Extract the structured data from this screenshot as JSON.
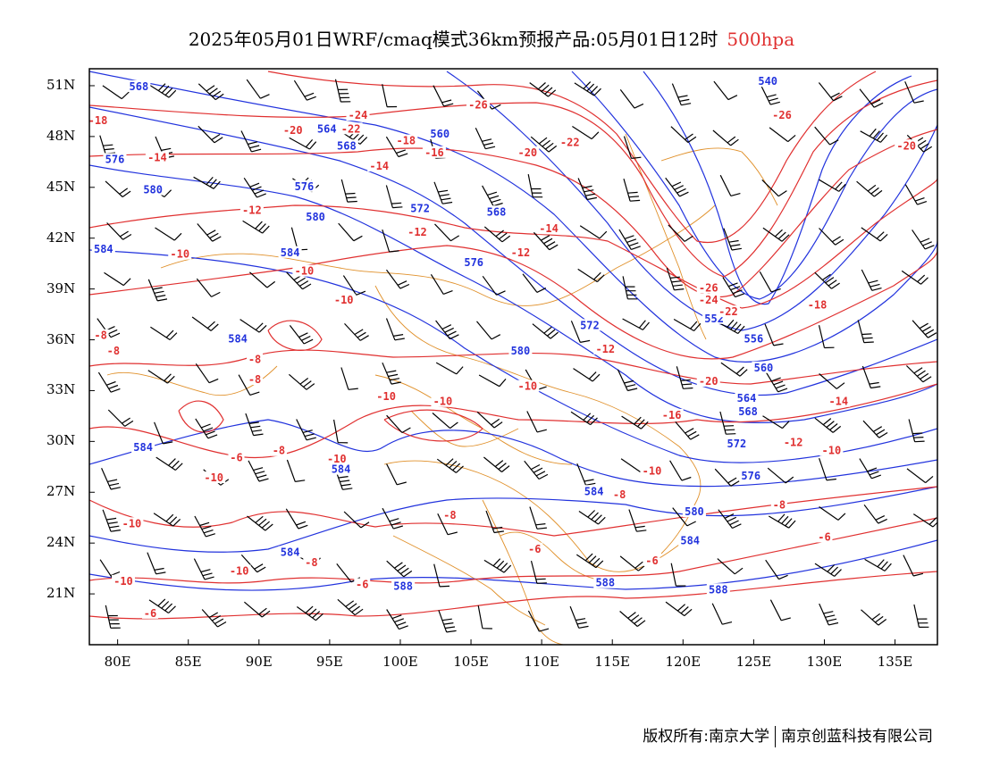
{
  "title": {
    "text": "2025年05月01日WRF/cmaq模式36km预报产品:05月01日12时",
    "level": "500hpa"
  },
  "colors": {
    "height": "#2233dd",
    "temperature": "#e03030",
    "border": "#e0902a",
    "wind": "#000000"
  },
  "axes": {
    "lat_ticks": [
      "51N",
      "48N",
      "45N",
      "42N",
      "39N",
      "36N",
      "33N",
      "30N",
      "27N",
      "24N",
      "21N"
    ],
    "lon_ticks": [
      "80E",
      "85E",
      "90E",
      "95E",
      "100E",
      "105E",
      "110E",
      "115E",
      "120E",
      "125E",
      "130E",
      "135E"
    ],
    "lon_range": [
      78,
      138
    ],
    "lat_range": [
      18,
      52
    ]
  },
  "height_labels": [
    {
      "t": "588",
      "lon": 100.2,
      "lat": 21.4
    },
    {
      "t": "588",
      "lon": 114.5,
      "lat": 21.6
    },
    {
      "t": "588",
      "lon": 122.5,
      "lat": 21.2
    },
    {
      "t": "584",
      "lon": 120.5,
      "lat": 24.1
    },
    {
      "t": "584",
      "lon": 92.2,
      "lat": 23.4
    },
    {
      "t": "584",
      "lon": 113.7,
      "lat": 27.0
    },
    {
      "t": "584",
      "lon": 95.8,
      "lat": 28.3
    },
    {
      "t": "584",
      "lon": 81.8,
      "lat": 29.6
    },
    {
      "t": "584",
      "lon": 88.5,
      "lat": 36.0
    },
    {
      "t": "584",
      "lon": 92.2,
      "lat": 41.1
    },
    {
      "t": "584",
      "lon": 79.0,
      "lat": 41.3
    },
    {
      "t": "580",
      "lon": 120.8,
      "lat": 25.8
    },
    {
      "t": "580",
      "lon": 108.5,
      "lat": 35.3
    },
    {
      "t": "580",
      "lon": 94.0,
      "lat": 43.2
    },
    {
      "t": "580",
      "lon": 82.5,
      "lat": 44.8
    },
    {
      "t": "576",
      "lon": 124.8,
      "lat": 27.9
    },
    {
      "t": "576",
      "lon": 105.2,
      "lat": 40.5
    },
    {
      "t": "576",
      "lon": 79.8,
      "lat": 46.6
    },
    {
      "t": "576",
      "lon": 93.2,
      "lat": 45.0
    },
    {
      "t": "572",
      "lon": 123.8,
      "lat": 29.8
    },
    {
      "t": "572",
      "lon": 113.4,
      "lat": 36.8
    },
    {
      "t": "572",
      "lon": 101.4,
      "lat": 43.7
    },
    {
      "t": "568",
      "lon": 81.5,
      "lat": 50.9
    },
    {
      "t": "568",
      "lon": 124.6,
      "lat": 31.7
    },
    {
      "t": "568",
      "lon": 106.8,
      "lat": 43.5
    },
    {
      "t": "568",
      "lon": 96.2,
      "lat": 47.4
    },
    {
      "t": "564",
      "lon": 124.5,
      "lat": 32.5
    },
    {
      "t": "564",
      "lon": 94.8,
      "lat": 48.4
    },
    {
      "t": "560",
      "lon": 125.7,
      "lat": 34.3
    },
    {
      "t": "560",
      "lon": 102.8,
      "lat": 48.1
    },
    {
      "t": "556",
      "lon": 125.0,
      "lat": 36.0
    },
    {
      "t": "552",
      "lon": 122.2,
      "lat": 37.2
    },
    {
      "t": "540",
      "lon": 126.0,
      "lat": 51.2
    }
  ],
  "temp_labels": [
    {
      "t": "-26",
      "lon": 105.5,
      "lat": 49.8
    },
    {
      "t": "-26",
      "lon": 127.0,
      "lat": 49.2
    },
    {
      "t": "-24",
      "lon": 97.0,
      "lat": 49.2
    },
    {
      "t": "-22",
      "lon": 96.5,
      "lat": 48.4
    },
    {
      "t": "-22",
      "lon": 112.0,
      "lat": 47.6
    },
    {
      "t": "-20",
      "lon": 92.4,
      "lat": 48.3
    },
    {
      "t": "-20",
      "lon": 109.0,
      "lat": 47.0
    },
    {
      "t": "-20",
      "lon": 135.8,
      "lat": 47.4
    },
    {
      "t": "-18",
      "lon": 78.6,
      "lat": 48.9
    },
    {
      "t": "-18",
      "lon": 100.4,
      "lat": 47.7
    },
    {
      "t": "-16",
      "lon": 102.4,
      "lat": 47.0
    },
    {
      "t": "-14",
      "lon": 82.8,
      "lat": 46.7
    },
    {
      "t": "-14",
      "lon": 98.5,
      "lat": 46.2
    },
    {
      "t": "-12",
      "lon": 89.5,
      "lat": 43.6
    },
    {
      "t": "-12",
      "lon": 108.5,
      "lat": 41.1
    },
    {
      "t": "-14",
      "lon": 110.5,
      "lat": 42.5
    },
    {
      "t": "-12",
      "lon": 101.2,
      "lat": 42.3
    },
    {
      "t": "-10",
      "lon": 84.4,
      "lat": 41.0
    },
    {
      "t": "-10",
      "lon": 93.2,
      "lat": 40.0
    },
    {
      "t": "-10",
      "lon": 96.0,
      "lat": 38.3
    },
    {
      "t": "-26",
      "lon": 121.8,
      "lat": 39.0
    },
    {
      "t": "-24",
      "lon": 121.8,
      "lat": 38.3
    },
    {
      "t": "-22",
      "lon": 123.2,
      "lat": 37.6
    },
    {
      "t": "-18",
      "lon": 129.5,
      "lat": 38.0
    },
    {
      "t": "-8",
      "lon": 78.8,
      "lat": 36.2
    },
    {
      "t": "-8",
      "lon": 79.7,
      "lat": 35.3
    },
    {
      "t": "-8",
      "lon": 89.7,
      "lat": 34.8
    },
    {
      "t": "-8",
      "lon": 89.7,
      "lat": 33.6
    },
    {
      "t": "-12",
      "lon": 114.5,
      "lat": 35.4
    },
    {
      "t": "-10",
      "lon": 109.0,
      "lat": 33.2
    },
    {
      "t": "-20",
      "lon": 121.8,
      "lat": 33.5
    },
    {
      "t": "-16",
      "lon": 119.2,
      "lat": 31.5
    },
    {
      "t": "-14",
      "lon": 131.0,
      "lat": 32.3
    },
    {
      "t": "-10",
      "lon": 103.0,
      "lat": 32.3
    },
    {
      "t": "-10",
      "lon": 99.0,
      "lat": 32.6
    },
    {
      "t": "-12",
      "lon": 127.8,
      "lat": 29.9
    },
    {
      "t": "-10",
      "lon": 130.5,
      "lat": 29.4
    },
    {
      "t": "-10",
      "lon": 95.5,
      "lat": 28.9
    },
    {
      "t": "-8",
      "lon": 91.4,
      "lat": 29.4
    },
    {
      "t": "-6",
      "lon": 88.4,
      "lat": 29.0
    },
    {
      "t": "-10",
      "lon": 86.8,
      "lat": 27.8
    },
    {
      "t": "-10",
      "lon": 117.8,
      "lat": 28.2
    },
    {
      "t": "-8",
      "lon": 115.5,
      "lat": 26.8
    },
    {
      "t": "-8",
      "lon": 126.8,
      "lat": 26.2
    },
    {
      "t": "-8",
      "lon": 103.5,
      "lat": 25.6
    },
    {
      "t": "-10",
      "lon": 81.0,
      "lat": 25.1
    },
    {
      "t": "-6",
      "lon": 130.0,
      "lat": 24.3
    },
    {
      "t": "-6",
      "lon": 109.5,
      "lat": 23.6
    },
    {
      "t": "-6",
      "lon": 117.8,
      "lat": 22.9
    },
    {
      "t": "-8",
      "lon": 93.7,
      "lat": 22.8
    },
    {
      "t": "-10",
      "lon": 88.6,
      "lat": 22.3
    },
    {
      "t": "-10",
      "lon": 80.4,
      "lat": 21.7
    },
    {
      "t": "-6",
      "lon": 97.3,
      "lat": 21.5
    },
    {
      "t": "-6",
      "lon": 82.3,
      "lat": 19.8
    }
  ],
  "footer": {
    "left": "版权所有:南京大学",
    "right": "南京创蓝科技有限公司"
  }
}
